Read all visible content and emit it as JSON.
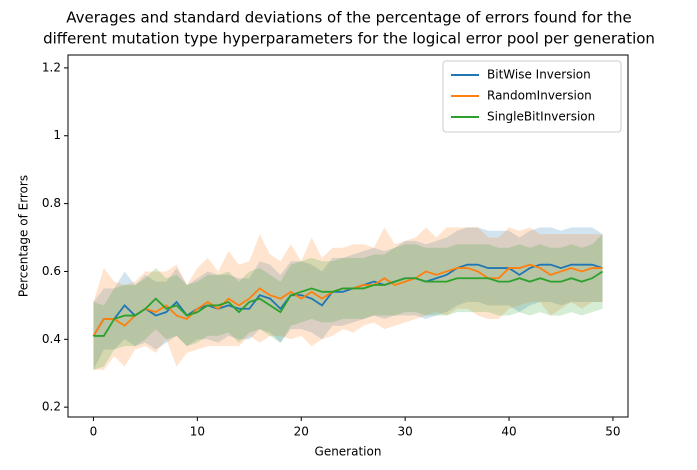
{
  "chart_data": {
    "type": "line",
    "band": "std",
    "title": [
      "Averages and standard deviations of the percentage of errors found for the",
      "different mutation type hyperparameters for the logical error pool per generation"
    ],
    "x_label": "Generation",
    "y_label": "Percentage of Errors",
    "legend": "upper right",
    "xlim": [
      -2.45,
      51.45
    ],
    "xticks": [
      0,
      10,
      20,
      30,
      40,
      50
    ],
    "ylim": [
      0.171,
      1.238
    ],
    "yticks": [
      0.2,
      0.4,
      0.6,
      0.8,
      1.0,
      1.2
    ],
    "x": [
      0,
      1,
      2,
      3,
      4,
      5,
      6,
      7,
      8,
      9,
      10,
      11,
      12,
      13,
      14,
      15,
      16,
      17,
      18,
      19,
      20,
      21,
      22,
      23,
      24,
      25,
      26,
      27,
      28,
      29,
      30,
      31,
      32,
      33,
      34,
      35,
      36,
      37,
      38,
      39,
      40,
      41,
      42,
      43,
      44,
      45,
      46,
      47,
      48,
      49
    ],
    "series": [
      {
        "name": "BitWise Inversion",
        "color": "#1f77b4",
        "values": [
          0.41,
          0.46,
          0.46,
          0.5,
          0.47,
          0.49,
          0.47,
          0.48,
          0.51,
          0.47,
          0.49,
          0.5,
          0.49,
          0.5,
          0.49,
          0.49,
          0.53,
          0.52,
          0.49,
          0.53,
          0.53,
          0.52,
          0.5,
          0.54,
          0.54,
          0.55,
          0.56,
          0.57,
          0.56,
          0.57,
          0.58,
          0.58,
          0.57,
          0.58,
          0.59,
          0.61,
          0.62,
          0.62,
          0.61,
          0.61,
          0.61,
          0.59,
          0.61,
          0.62,
          0.62,
          0.61,
          0.62,
          0.62,
          0.62,
          0.61
        ],
        "std": [
          0.1,
          0.09,
          0.09,
          0.1,
          0.09,
          0.1,
          0.1,
          0.09,
          0.1,
          0.09,
          0.09,
          0.1,
          0.1,
          0.09,
          0.09,
          0.09,
          0.1,
          0.1,
          0.1,
          0.1,
          0.1,
          0.1,
          0.1,
          0.1,
          0.1,
          0.1,
          0.1,
          0.1,
          0.1,
          0.1,
          0.11,
          0.11,
          0.11,
          0.11,
          0.11,
          0.11,
          0.11,
          0.11,
          0.11,
          0.11,
          0.11,
          0.11,
          0.11,
          0.11,
          0.11,
          0.11,
          0.11,
          0.11,
          0.11,
          0.1
        ]
      },
      {
        "name": "RandomInversion",
        "color": "#ff7f0e",
        "values": [
          0.41,
          0.46,
          0.46,
          0.44,
          0.47,
          0.49,
          0.48,
          0.5,
          0.47,
          0.46,
          0.49,
          0.51,
          0.49,
          0.52,
          0.5,
          0.52,
          0.55,
          0.53,
          0.52,
          0.54,
          0.52,
          0.54,
          0.52,
          0.54,
          0.55,
          0.55,
          0.56,
          0.56,
          0.58,
          0.56,
          0.57,
          0.58,
          0.6,
          0.59,
          0.6,
          0.61,
          0.61,
          0.6,
          0.58,
          0.58,
          0.61,
          0.61,
          0.62,
          0.61,
          0.59,
          0.6,
          0.61,
          0.6,
          0.61,
          0.61
        ],
        "std": [
          0.1,
          0.15,
          0.11,
          0.12,
          0.1,
          0.11,
          0.12,
          0.1,
          0.15,
          0.1,
          0.12,
          0.13,
          0.11,
          0.14,
          0.12,
          0.11,
          0.16,
          0.12,
          0.11,
          0.14,
          0.11,
          0.16,
          0.12,
          0.13,
          0.12,
          0.13,
          0.12,
          0.11,
          0.15,
          0.12,
          0.12,
          0.12,
          0.13,
          0.11,
          0.13,
          0.12,
          0.12,
          0.13,
          0.12,
          0.12,
          0.12,
          0.11,
          0.11,
          0.1,
          0.12,
          0.11,
          0.1,
          0.11,
          0.1,
          0.1
        ]
      },
      {
        "name": "SingleBitInversion",
        "color": "#2ca02c",
        "values": [
          0.41,
          0.41,
          0.46,
          0.47,
          0.47,
          0.49,
          0.52,
          0.49,
          0.5,
          0.47,
          0.48,
          0.5,
          0.5,
          0.51,
          0.48,
          0.51,
          0.52,
          0.5,
          0.48,
          0.53,
          0.54,
          0.55,
          0.54,
          0.54,
          0.55,
          0.55,
          0.55,
          0.56,
          0.56,
          0.57,
          0.58,
          0.58,
          0.57,
          0.57,
          0.57,
          0.58,
          0.58,
          0.58,
          0.58,
          0.57,
          0.57,
          0.58,
          0.57,
          0.58,
          0.57,
          0.57,
          0.58,
          0.57,
          0.58,
          0.6
        ],
        "std": [
          0.1,
          0.09,
          0.09,
          0.09,
          0.09,
          0.09,
          0.09,
          0.09,
          0.09,
          0.09,
          0.09,
          0.09,
          0.09,
          0.09,
          0.09,
          0.09,
          0.09,
          0.09,
          0.09,
          0.09,
          0.09,
          0.09,
          0.09,
          0.09,
          0.09,
          0.09,
          0.09,
          0.09,
          0.09,
          0.1,
          0.1,
          0.1,
          0.1,
          0.1,
          0.1,
          0.1,
          0.1,
          0.1,
          0.1,
          0.1,
          0.1,
          0.1,
          0.1,
          0.1,
          0.1,
          0.1,
          0.1,
          0.1,
          0.1,
          0.11
        ]
      }
    ]
  }
}
